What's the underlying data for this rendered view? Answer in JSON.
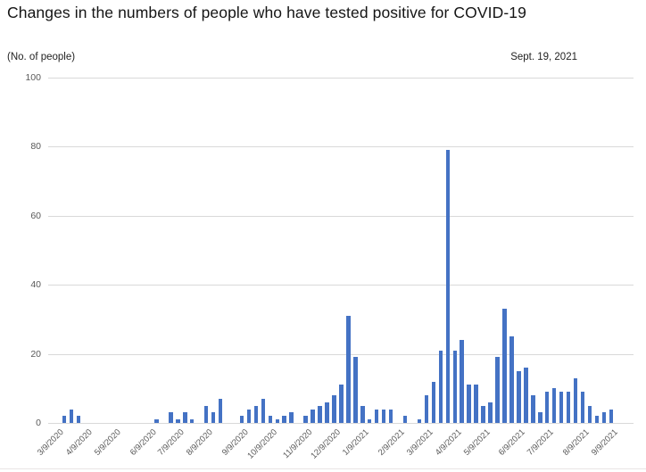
{
  "header": {
    "title": "Changes in the numbers of people who have tested positive for COVID-19",
    "unit_label": "(No. of people)",
    "date_label": "Sept. 19, 2021"
  },
  "chart_data": {
    "type": "bar",
    "title": "Changes in the numbers of people who have tested positive for COVID-19",
    "subtitle": "Sept. 19, 2021",
    "xlabel": "",
    "ylabel": "(No. of people)",
    "ylim": [
      0,
      100
    ],
    "yticks": [
      0,
      20,
      40,
      60,
      80,
      100
    ],
    "grid": true,
    "legend_position": "none",
    "bar_color": "#4472C4",
    "gridline_color": "#d9d9d9",
    "tick_label_color": "#595959",
    "x_unit": "week (bars are weekly counts)",
    "x_tick_labels": [
      "3/9/2020",
      "4/9/2020",
      "5/9/2020",
      "6/9/2020",
      "7/9/2020",
      "8/9/2020",
      "9/9/2020",
      "10/9/2020",
      "11/9/2020",
      "12/9/2020",
      "1/9/2021",
      "2/9/2021",
      "3/9/2021",
      "4/9/2021",
      "5/9/2021",
      "6/9/2021",
      "7/9/2021",
      "8/9/2021",
      "9/9/2021"
    ],
    "x_tick_slots": [
      0,
      4,
      8,
      13,
      17,
      21,
      26,
      30,
      35,
      39,
      43,
      48,
      52,
      56,
      60,
      65,
      69,
      74,
      78
    ],
    "values": [
      0,
      2,
      4,
      2,
      0,
      0,
      0,
      0,
      0,
      0,
      0,
      0,
      0,
      0,
      1,
      0,
      3,
      1,
      3,
      1,
      0,
      5,
      3,
      7,
      0,
      0,
      2,
      4,
      5,
      7,
      2,
      1,
      2,
      3,
      0,
      2,
      4,
      5,
      6,
      8,
      11,
      31,
      19,
      5,
      1,
      4,
      4,
      4,
      0,
      2,
      0,
      1,
      8,
      12,
      21,
      79,
      21,
      24,
      11,
      11,
      5,
      6,
      19,
      33,
      25,
      15,
      16,
      8,
      3,
      9,
      10,
      9,
      9,
      13,
      9,
      5,
      2,
      3,
      4
    ]
  }
}
